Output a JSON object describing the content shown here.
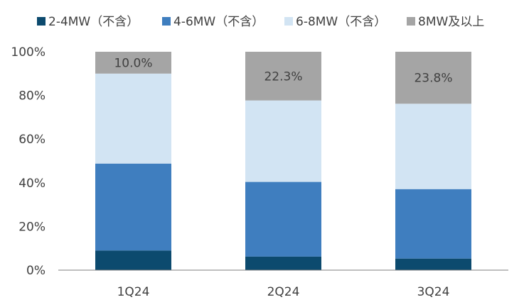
{
  "chart_data": {
    "type": "bar",
    "stacked": true,
    "percent": true,
    "categories": [
      "1Q24",
      "2Q24",
      "3Q24"
    ],
    "series": [
      {
        "name": "2-4MW（不含）",
        "color": "#0c4a6e",
        "values": [
          9.0,
          6.2,
          5.3
        ]
      },
      {
        "name": "4-6MW（不含）",
        "color": "#3f7ebf",
        "values": [
          39.8,
          34.2,
          31.8
        ]
      },
      {
        "name": "6-8MW（不含）",
        "color": "#d2e4f3",
        "values": [
          41.2,
          37.3,
          39.1
        ]
      },
      {
        "name": "8MW及以上",
        "color": "#a5a5a5",
        "values": [
          10.0,
          22.3,
          23.8
        ]
      }
    ],
    "data_labels": [
      {
        "category": "1Q24",
        "series": "8MW及以上",
        "text": "10.0%"
      },
      {
        "category": "2Q24",
        "series": "8MW及以上",
        "text": "22.3%"
      },
      {
        "category": "3Q24",
        "series": "8MW及以上",
        "text": "23.8%"
      }
    ],
    "y_ticks": [
      "0%",
      "20%",
      "40%",
      "60%",
      "80%",
      "100%"
    ],
    "ylim": [
      0,
      100
    ],
    "grid": false,
    "legend_position": "top"
  }
}
